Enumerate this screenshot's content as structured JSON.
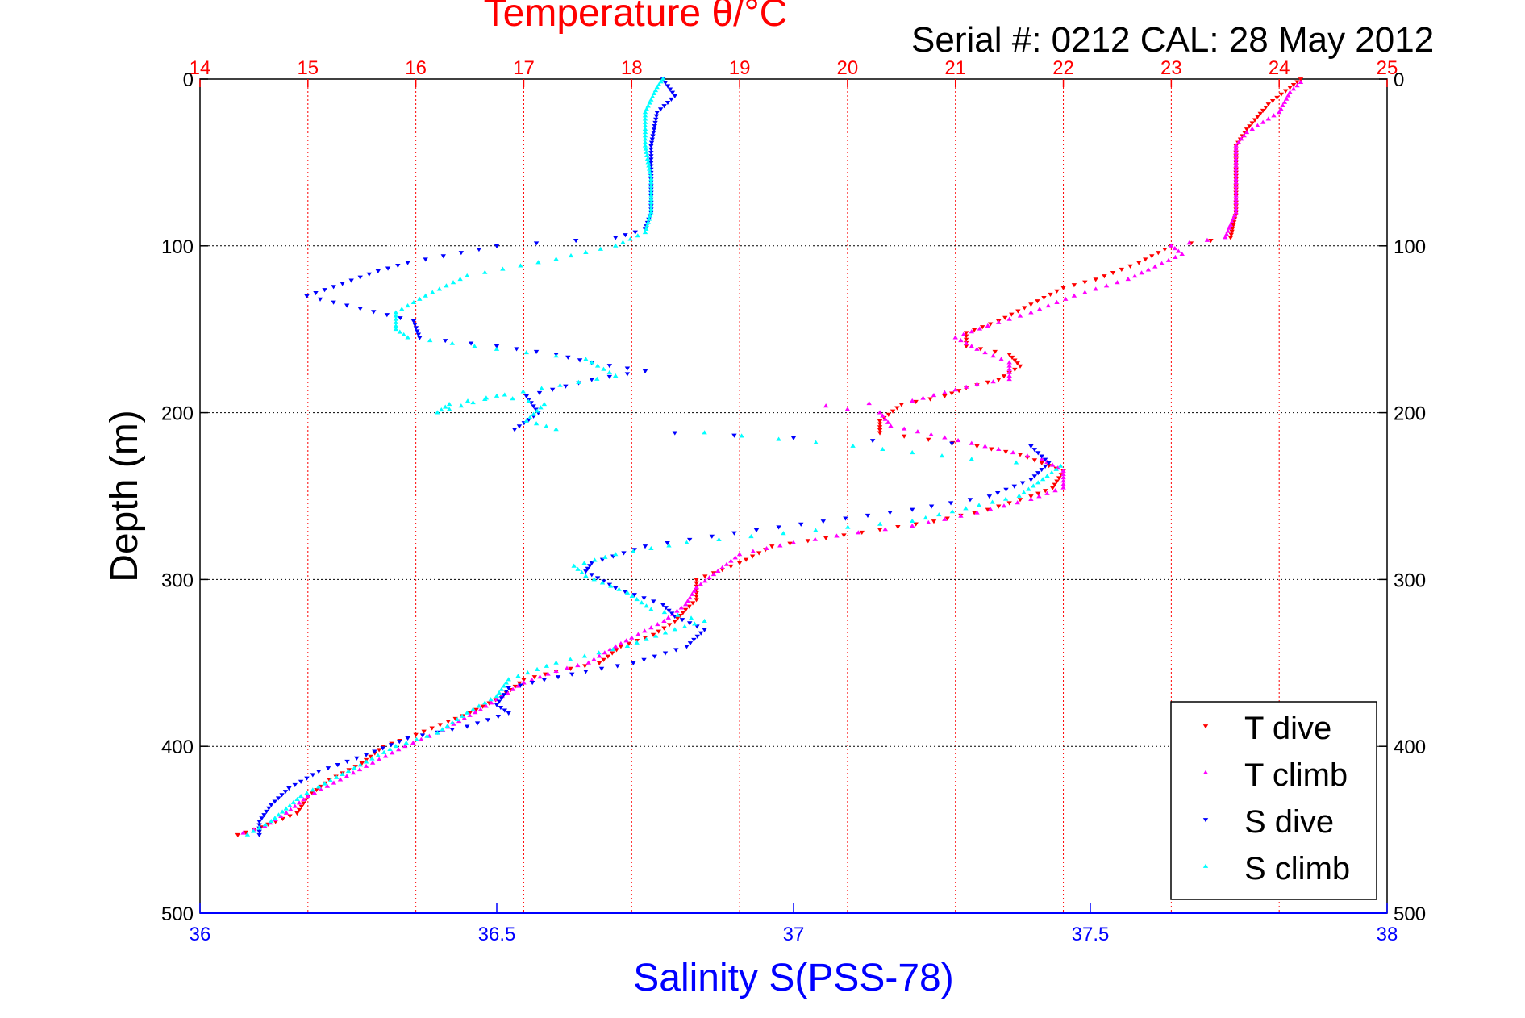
{
  "chart_data": {
    "type": "scatter",
    "title": "Temperature θ/°C",
    "subtitle": "Serial #: 0212  CAL: 28 May 2012",
    "xlabel": "Salinity S(PSS-78)",
    "ylabel": "Depth (m)",
    "top_axis": {
      "label": "Temperature θ/°C",
      "lim": [
        14,
        25
      ],
      "ticks": [
        "14",
        "15",
        "16",
        "17",
        "18",
        "19",
        "20",
        "21",
        "22",
        "23",
        "24",
        "25"
      ]
    },
    "bottom_axis": {
      "label": "Salinity S(PSS-78)",
      "lim": [
        36,
        38
      ],
      "ticks": [
        "36",
        "36.5",
        "37",
        "37.5",
        "38"
      ]
    },
    "y_axis": {
      "lim": [
        0,
        500
      ],
      "reversed": true,
      "ticks": [
        "0",
        "100",
        "200",
        "300",
        "400",
        "500"
      ]
    },
    "grid": true,
    "legend_position": "bottom-right",
    "series": [
      {
        "name": "T dive",
        "axis": "temperature",
        "color": "#ff0000",
        "marker": "triangle-down",
        "points": [
          [
            24.2,
            0
          ],
          [
            24.1,
            5
          ],
          [
            23.9,
            15
          ],
          [
            23.7,
            30
          ],
          [
            23.6,
            40
          ],
          [
            23.6,
            60
          ],
          [
            23.6,
            80
          ],
          [
            23.55,
            95
          ],
          [
            23.0,
            100
          ],
          [
            22.7,
            110
          ],
          [
            22.3,
            120
          ],
          [
            22.0,
            125
          ],
          [
            21.7,
            135
          ],
          [
            21.4,
            145
          ],
          [
            21.1,
            152
          ],
          [
            21.1,
            160
          ],
          [
            21.5,
            165
          ],
          [
            21.6,
            172
          ],
          [
            21.4,
            180
          ],
          [
            21.1,
            185
          ],
          [
            20.9,
            190
          ],
          [
            20.5,
            195
          ],
          [
            20.3,
            205
          ],
          [
            20.3,
            212
          ],
          [
            21.2,
            220
          ],
          [
            21.6,
            225
          ],
          [
            21.8,
            230
          ],
          [
            22.0,
            235
          ],
          [
            21.9,
            245
          ],
          [
            21.7,
            250
          ],
          [
            21.3,
            258
          ],
          [
            20.8,
            265
          ],
          [
            20.3,
            270
          ],
          [
            19.8,
            275
          ],
          [
            19.3,
            280
          ],
          [
            19.0,
            290
          ],
          [
            18.6,
            300
          ],
          [
            18.6,
            312
          ],
          [
            18.5,
            318
          ],
          [
            18.4,
            325
          ],
          [
            18.2,
            333
          ],
          [
            17.9,
            340
          ],
          [
            17.7,
            350
          ],
          [
            17.3,
            355
          ],
          [
            17.0,
            360
          ],
          [
            16.8,
            370
          ],
          [
            16.5,
            380
          ],
          [
            16.3,
            385
          ],
          [
            16.0,
            393
          ],
          [
            15.7,
            400
          ],
          [
            15.5,
            410
          ],
          [
            15.2,
            420
          ],
          [
            15.0,
            430
          ],
          [
            14.9,
            440
          ],
          [
            14.7,
            445
          ],
          [
            14.5,
            450
          ],
          [
            14.35,
            453
          ]
        ]
      },
      {
        "name": "T climb",
        "axis": "temperature",
        "color": "#ff00ff",
        "marker": "triangle-up",
        "points": [
          [
            14.4,
            452
          ],
          [
            14.6,
            448
          ],
          [
            14.8,
            440
          ],
          [
            15.0,
            430
          ],
          [
            15.3,
            420
          ],
          [
            15.6,
            410
          ],
          [
            15.9,
            400
          ],
          [
            16.2,
            392
          ],
          [
            16.4,
            385
          ],
          [
            16.6,
            378
          ],
          [
            16.8,
            370
          ],
          [
            17.0,
            362
          ],
          [
            17.3,
            355
          ],
          [
            17.6,
            350
          ],
          [
            17.8,
            342
          ],
          [
            18.0,
            335
          ],
          [
            18.3,
            325
          ],
          [
            18.5,
            315
          ],
          [
            18.6,
            305
          ],
          [
            18.8,
            295
          ],
          [
            19.0,
            285
          ],
          [
            19.5,
            278
          ],
          [
            20.1,
            272
          ],
          [
            20.6,
            268
          ],
          [
            21.2,
            260
          ],
          [
            21.7,
            252
          ],
          [
            22.0,
            245
          ],
          [
            22.0,
            235
          ],
          [
            21.8,
            228
          ],
          [
            21.4,
            222
          ],
          [
            20.9,
            215
          ],
          [
            20.4,
            208
          ],
          [
            20.3,
            200
          ],
          [
            20.0,
            198
          ],
          [
            19.8,
            196
          ],
          [
            20.6,
            193
          ],
          [
            20.9,
            188
          ],
          [
            21.2,
            183
          ],
          [
            21.5,
            180
          ],
          [
            21.5,
            170
          ],
          [
            21.2,
            162
          ],
          [
            21.0,
            155
          ],
          [
            21.3,
            148
          ],
          [
            21.7,
            140
          ],
          [
            22.1,
            130
          ],
          [
            22.6,
            120
          ],
          [
            23.1,
            105
          ],
          [
            23.0,
            100
          ],
          [
            23.5,
            95
          ],
          [
            23.6,
            80
          ],
          [
            23.6,
            60
          ],
          [
            23.6,
            40
          ],
          [
            23.7,
            32
          ],
          [
            24.0,
            20
          ],
          [
            24.1,
            8
          ],
          [
            24.2,
            2
          ]
        ]
      },
      {
        "name": "S dive",
        "axis": "salinity",
        "color": "#0000ff",
        "marker": "triangle-down",
        "points": [
          [
            36.78,
            0
          ],
          [
            36.8,
            10
          ],
          [
            36.77,
            20
          ],
          [
            36.76,
            40
          ],
          [
            36.76,
            60
          ],
          [
            36.76,
            80
          ],
          [
            36.75,
            90
          ],
          [
            36.7,
            95
          ],
          [
            36.5,
            100
          ],
          [
            36.35,
            110
          ],
          [
            36.3,
            115
          ],
          [
            36.18,
            130
          ],
          [
            36.36,
            145
          ],
          [
            36.37,
            155
          ],
          [
            36.5,
            160
          ],
          [
            36.6,
            165
          ],
          [
            36.66,
            170
          ],
          [
            36.75,
            175
          ],
          [
            36.66,
            180
          ],
          [
            36.55,
            190
          ],
          [
            36.57,
            200
          ],
          [
            36.53,
            210
          ],
          [
            36.8,
            212
          ],
          [
            37.0,
            215
          ],
          [
            37.4,
            220
          ],
          [
            37.43,
            230
          ],
          [
            37.4,
            240
          ],
          [
            37.33,
            250
          ],
          [
            37.2,
            258
          ],
          [
            37.05,
            265
          ],
          [
            36.9,
            272
          ],
          [
            36.75,
            280
          ],
          [
            36.66,
            290
          ],
          [
            36.65,
            295
          ],
          [
            36.7,
            305
          ],
          [
            36.78,
            315
          ],
          [
            36.8,
            322
          ],
          [
            36.85,
            330
          ],
          [
            36.82,
            340
          ],
          [
            36.73,
            350
          ],
          [
            36.65,
            355
          ],
          [
            36.58,
            360
          ],
          [
            36.52,
            365
          ],
          [
            36.5,
            375
          ],
          [
            36.52,
            380
          ],
          [
            36.45,
            388
          ],
          [
            36.35,
            395
          ],
          [
            36.28,
            405
          ],
          [
            36.2,
            415
          ],
          [
            36.15,
            425
          ],
          [
            36.12,
            435
          ],
          [
            36.1,
            445
          ],
          [
            36.1,
            453
          ]
        ]
      },
      {
        "name": "S climb",
        "axis": "salinity",
        "color": "#00ffff",
        "marker": "triangle-up",
        "points": [
          [
            36.08,
            453
          ],
          [
            36.12,
            445
          ],
          [
            36.17,
            430
          ],
          [
            36.25,
            415
          ],
          [
            36.33,
            400
          ],
          [
            36.4,
            392
          ],
          [
            36.45,
            380
          ],
          [
            36.5,
            370
          ],
          [
            36.52,
            360
          ],
          [
            36.6,
            350
          ],
          [
            36.72,
            340
          ],
          [
            36.8,
            330
          ],
          [
            36.85,
            325
          ],
          [
            36.76,
            318
          ],
          [
            36.72,
            308
          ],
          [
            36.65,
            298
          ],
          [
            36.63,
            292
          ],
          [
            36.7,
            285
          ],
          [
            36.82,
            278
          ],
          [
            37.2,
            265
          ],
          [
            37.38,
            250
          ],
          [
            37.42,
            240
          ],
          [
            37.45,
            232
          ],
          [
            37.3,
            228
          ],
          [
            37.1,
            220
          ],
          [
            36.85,
            212
          ],
          [
            36.6,
            210
          ],
          [
            36.55,
            205
          ],
          [
            36.58,
            195
          ],
          [
            36.5,
            190
          ],
          [
            36.4,
            200
          ],
          [
            36.42,
            195
          ],
          [
            36.7,
            178
          ],
          [
            36.65,
            168
          ],
          [
            36.5,
            162
          ],
          [
            36.35,
            155
          ],
          [
            36.33,
            150
          ],
          [
            36.33,
            140
          ],
          [
            36.38,
            130
          ],
          [
            36.45,
            118
          ],
          [
            36.6,
            108
          ],
          [
            36.7,
            100
          ],
          [
            36.75,
            92
          ],
          [
            36.76,
            80
          ],
          [
            36.76,
            60
          ],
          [
            36.75,
            40
          ],
          [
            36.75,
            20
          ],
          [
            36.77,
            5
          ],
          [
            36.78,
            0
          ]
        ]
      }
    ]
  }
}
